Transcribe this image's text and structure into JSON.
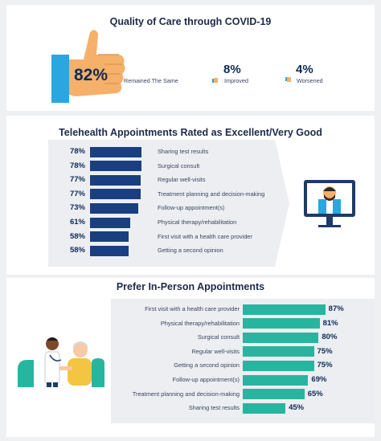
{
  "quality": {
    "title": "Quality of Care through COVID-19",
    "same_pct": "82%",
    "same_label": "Remained The Same",
    "improved_pct": "8%",
    "improved_label": "Improved",
    "worsened_pct": "4%",
    "worsened_label": "Worsened"
  },
  "telehealth": {
    "title": "Telehealth Appointments Rated as Excellent/Very Good"
  },
  "inperson": {
    "title": "Prefer In-Person Appointments"
  },
  "colors": {
    "navy_bar": "#1a3f80",
    "teal_bar": "#27b5a0",
    "thumb_blue": "#2aa6e0",
    "thumb_skin": "#f5b06a"
  },
  "chart_data": [
    {
      "type": "bar",
      "title": "Telehealth Appointments Rated as Excellent/Very Good",
      "categories": [
        "Sharing test results",
        "Surgical consult",
        "Regular well-visits",
        "Treatment planning and decision-making",
        "Follow-up appointment(s)",
        "Physical therapy/rehabilitation",
        "First visit with a health care provider",
        "Getting a second opinion"
      ],
      "values": [
        78,
        78,
        77,
        77,
        73,
        61,
        58,
        58
      ],
      "value_labels": [
        "78%",
        "78%",
        "77%",
        "77%",
        "73%",
        "61%",
        "58%",
        "58%"
      ],
      "xlim": [
        0,
        100
      ]
    },
    {
      "type": "bar",
      "title": "Prefer In-Person Appointments",
      "categories": [
        "First visit with a health care provider",
        "Physical therapy/rehabilitation",
        "Surgical consult",
        "Regular well-visits",
        "Getting a second opinion",
        "Follow-up appointment(s)",
        "Treatment planning and decision-making",
        "Sharing test results"
      ],
      "values": [
        87,
        81,
        80,
        75,
        75,
        69,
        65,
        45
      ],
      "value_labels": [
        "87%",
        "81%",
        "80%",
        "75%",
        "75%",
        "69%",
        "65%",
        "45%"
      ],
      "xlim": [
        0,
        100
      ]
    }
  ]
}
